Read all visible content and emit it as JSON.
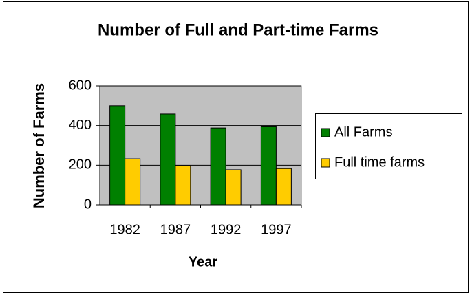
{
  "chart_data": {
    "type": "bar",
    "title": "Number of Full and Part-time Farms",
    "x_label": "Year",
    "y_label": "Number of Farms",
    "categories": [
      "1982",
      "1987",
      "1992",
      "1997"
    ],
    "series": [
      {
        "name": "All Farms",
        "color": "#008000",
        "values": [
          500,
          458,
          388,
          394
        ]
      },
      {
        "name": "Full time farms",
        "color": "#ffcc00",
        "values": [
          232,
          197,
          177,
          183
        ]
      }
    ],
    "ylim": [
      0,
      600
    ],
    "yticks": [
      0,
      200,
      400,
      600
    ],
    "grid": true,
    "legend": "right"
  }
}
